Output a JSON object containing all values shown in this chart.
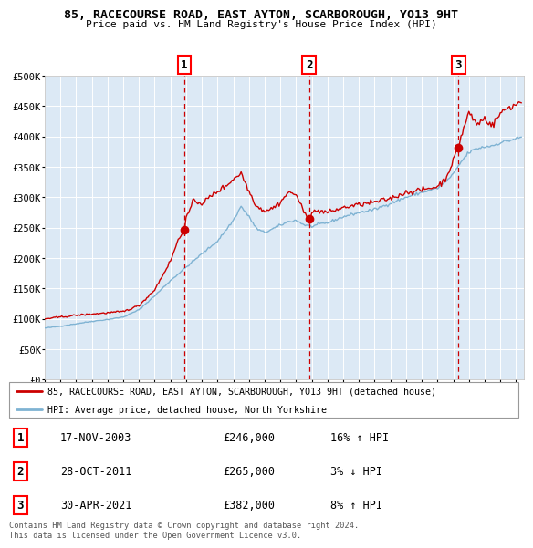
{
  "title": "85, RACECOURSE ROAD, EAST AYTON, SCARBOROUGH, YO13 9HT",
  "subtitle": "Price paid vs. HM Land Registry's House Price Index (HPI)",
  "background_color": "#ffffff",
  "plot_bg_color": "#dce9f5",
  "grid_color": "#ffffff",
  "red_line_color": "#cc0000",
  "blue_line_color": "#7fb3d3",
  "sale_year_floats": [
    2003.875,
    2011.833,
    2021.333
  ],
  "sale_prices": [
    246000,
    265000,
    382000
  ],
  "sale_labels": [
    "1",
    "2",
    "3"
  ],
  "legend_label_red": "85, RACECOURSE ROAD, EAST AYTON, SCARBOROUGH, YO13 9HT (detached house)",
  "legend_label_blue": "HPI: Average price, detached house, North Yorkshire",
  "table_rows": [
    [
      "1",
      "17-NOV-2003",
      "£246,000",
      "16% ↑ HPI"
    ],
    [
      "2",
      "28-OCT-2011",
      "£265,000",
      "3% ↓ HPI"
    ],
    [
      "3",
      "30-APR-2021",
      "£382,000",
      "8% ↑ HPI"
    ]
  ],
  "footer": "Contains HM Land Registry data © Crown copyright and database right 2024.\nThis data is licensed under the Open Government Licence v3.0.",
  "ylim": [
    0,
    500000
  ],
  "yticks": [
    0,
    50000,
    100000,
    150000,
    200000,
    250000,
    300000,
    350000,
    400000,
    450000,
    500000
  ],
  "ytick_labels": [
    "£0",
    "£50K",
    "£100K",
    "£150K",
    "£200K",
    "£250K",
    "£300K",
    "£350K",
    "£400K",
    "£450K",
    "£500K"
  ],
  "xlim_start": 1995.0,
  "xlim_end": 2025.5,
  "blue_anchors_x": [
    1995.0,
    1996.0,
    1997.0,
    1998.0,
    1999.0,
    2000.0,
    2001.0,
    2002.0,
    2003.0,
    2004.0,
    2005.0,
    2006.0,
    2007.0,
    2007.5,
    2008.0,
    2008.5,
    2009.0,
    2009.5,
    2010.0,
    2010.5,
    2011.0,
    2011.5,
    2012.0,
    2012.5,
    2013.0,
    2014.0,
    2015.0,
    2016.0,
    2017.0,
    2018.0,
    2019.0,
    2020.0,
    2020.5,
    2021.0,
    2021.5,
    2022.0,
    2022.5,
    2023.0,
    2023.5,
    2024.0,
    2024.5,
    2025.25
  ],
  "blue_anchors_y": [
    85000,
    88000,
    92000,
    96000,
    99000,
    103000,
    115000,
    138000,
    163000,
    185000,
    207000,
    228000,
    262000,
    285000,
    268000,
    248000,
    242000,
    248000,
    254000,
    260000,
    262000,
    255000,
    252000,
    256000,
    258000,
    268000,
    275000,
    280000,
    290000,
    300000,
    308000,
    315000,
    325000,
    338000,
    358000,
    374000,
    380000,
    383000,
    385000,
    390000,
    393000,
    398000
  ],
  "red_anchors_x": [
    1995.0,
    1996.0,
    1997.0,
    1998.0,
    1999.0,
    2000.0,
    2001.0,
    2002.0,
    2003.0,
    2003.5,
    2003.875,
    2004.0,
    2004.5,
    2005.0,
    2005.5,
    2006.0,
    2006.5,
    2007.0,
    2007.5,
    2008.0,
    2008.5,
    2009.0,
    2009.5,
    2010.0,
    2010.5,
    2011.0,
    2011.5,
    2011.833,
    2012.0,
    2012.5,
    2013.0,
    2014.0,
    2015.0,
    2016.0,
    2017.0,
    2018.0,
    2019.0,
    2020.0,
    2020.5,
    2021.0,
    2021.333,
    2021.5,
    2022.0,
    2022.5,
    2023.0,
    2023.5,
    2024.0,
    2024.5,
    2025.0,
    2025.25
  ],
  "red_anchors_y": [
    100000,
    103000,
    106000,
    108000,
    110000,
    112000,
    122000,
    148000,
    195000,
    230000,
    246000,
    265000,
    295000,
    290000,
    300000,
    310000,
    318000,
    330000,
    340000,
    310000,
    285000,
    278000,
    282000,
    292000,
    308000,
    305000,
    275000,
    265000,
    275000,
    278000,
    275000,
    283000,
    288000,
    292000,
    298000,
    308000,
    312000,
    318000,
    330000,
    360000,
    382000,
    400000,
    440000,
    420000,
    430000,
    418000,
    438000,
    448000,
    452000,
    458000
  ]
}
